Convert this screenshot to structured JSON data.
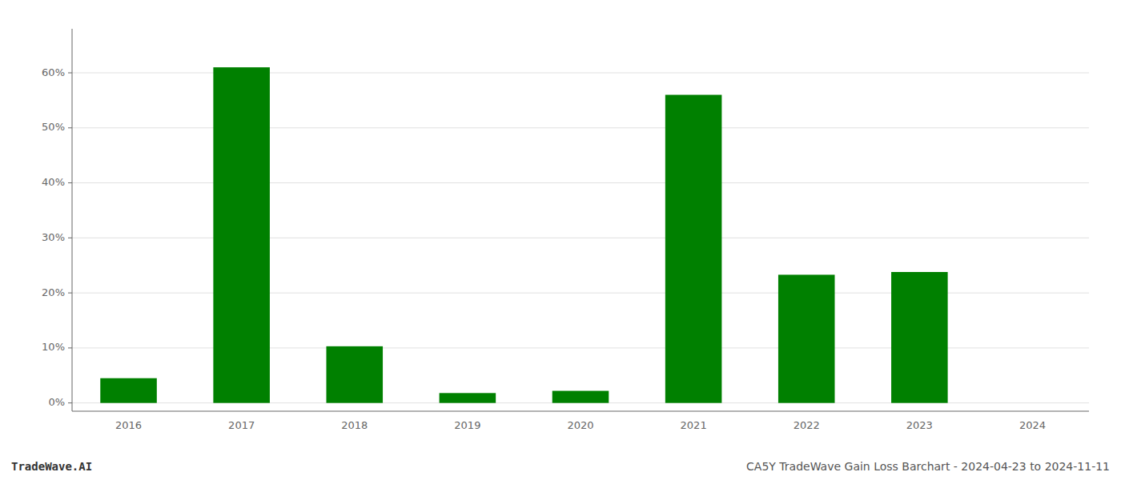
{
  "chart_data": {
    "type": "bar",
    "categories": [
      "2016",
      "2017",
      "2018",
      "2019",
      "2020",
      "2021",
      "2022",
      "2023",
      "2024"
    ],
    "values": [
      0.045,
      0.61,
      0.103,
      0.018,
      0.022,
      0.56,
      0.233,
      0.238,
      0.0
    ],
    "color": "#008000",
    "ylim": [
      -0.015,
      0.68
    ],
    "yticks": [
      {
        "value": 0,
        "label": "0%"
      },
      {
        "value": 0.1,
        "label": "10%"
      },
      {
        "value": 0.2,
        "label": "20%"
      },
      {
        "value": 0.3,
        "label": "30%"
      },
      {
        "value": 0.4,
        "label": "40%"
      },
      {
        "value": 0.5,
        "label": "50%"
      },
      {
        "value": 0.6,
        "label": "60%"
      }
    ],
    "grid": true,
    "annotations": [
      "TradeWave.AI",
      "CA5Y TradeWave Gain Loss Barchart - 2024-04-23 to 2024-11-11"
    ]
  }
}
